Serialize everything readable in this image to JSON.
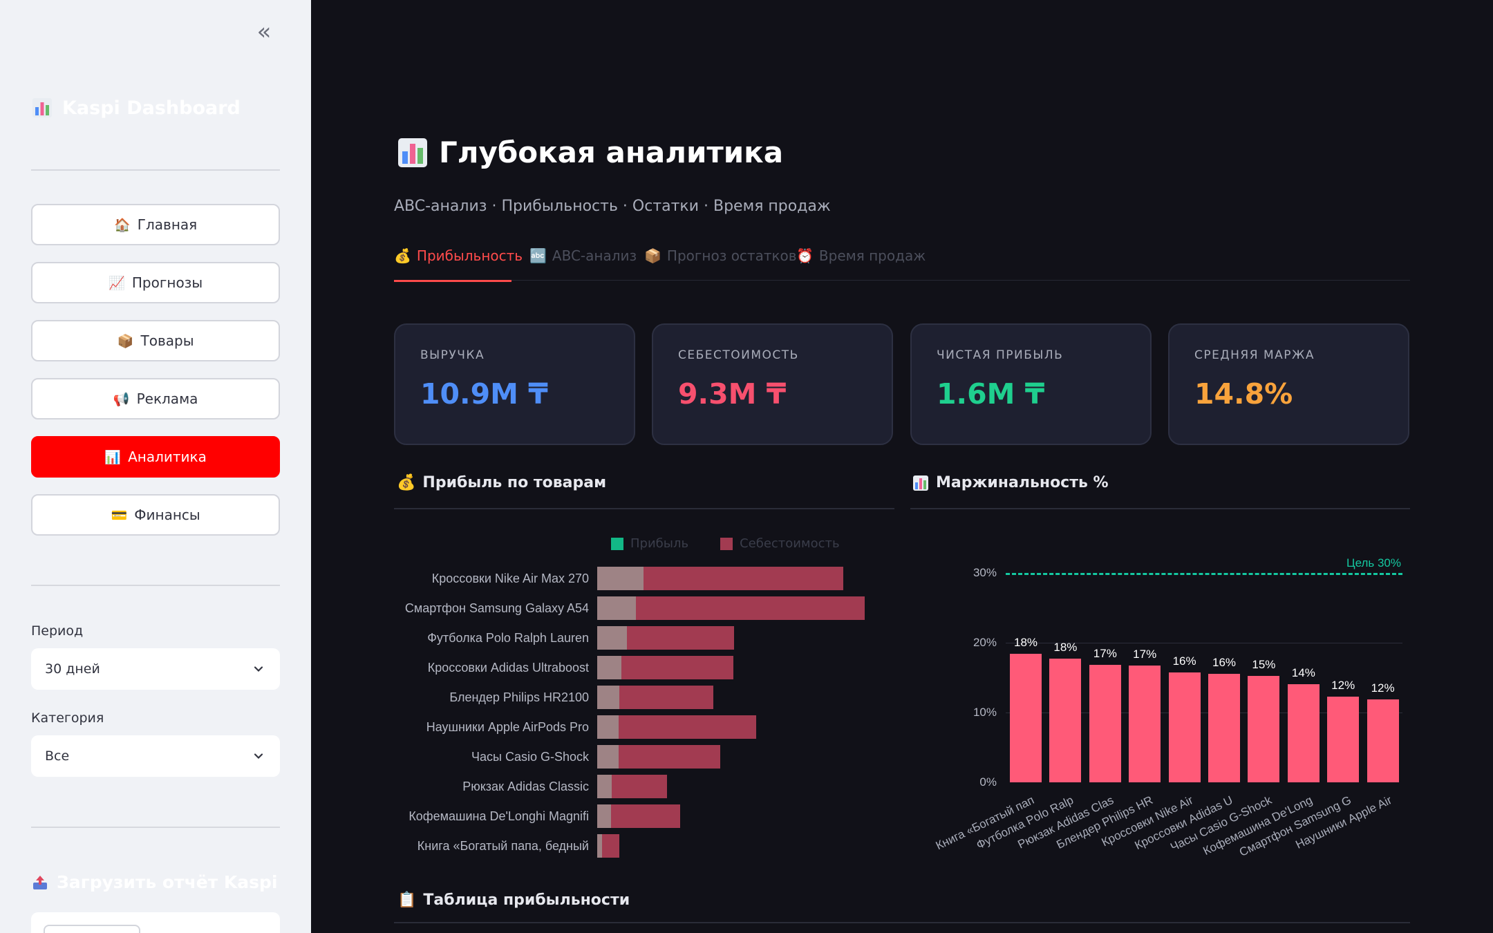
{
  "sidebar": {
    "brand": "Kaspi Dashboard",
    "nav": [
      {
        "emoji": "🏠",
        "label": "Главная",
        "active": false
      },
      {
        "emoji": "📈",
        "label": "Прогнозы",
        "active": false
      },
      {
        "emoji": "📦",
        "label": "Товары",
        "active": false
      },
      {
        "emoji": "📢",
        "label": "Реклама",
        "active": false
      },
      {
        "emoji": "📊",
        "label": "Аналитика",
        "active": true
      },
      {
        "emoji": "💳",
        "label": "Финансы",
        "active": false
      }
    ],
    "period_label": "Период",
    "period_value": "30 дней",
    "category_label": "Категория",
    "category_value": "Все",
    "upload_title": "Загрузить отчёт Kaspi"
  },
  "header": {
    "title": "Глубокая аналитика",
    "subtitle": "ABC-анализ · Прибыльность · Остатки · Время продаж"
  },
  "tabs": [
    {
      "emoji": "💰",
      "label": "Прибыльность",
      "active": true
    },
    {
      "emoji": "🔤",
      "label": "ABC-анализ",
      "active": false
    },
    {
      "emoji": "📦",
      "label": "Прогноз остатков",
      "active": false
    },
    {
      "emoji": "⏰",
      "label": "Время продаж",
      "active": false
    }
  ],
  "kpis": [
    {
      "label": "ВЫРУЧКА",
      "value": "10.9M ₸",
      "color": "#4f8ef7"
    },
    {
      "label": "СЕБЕСТОИМОСТЬ",
      "value": "9.3M ₸",
      "color": "#f7506e"
    },
    {
      "label": "ЧИСТАЯ ПРИБЫЛЬ",
      "value": "1.6M ₸",
      "color": "#1fcf8e"
    },
    {
      "label": "СРЕДНЯЯ МАРЖА",
      "value": "14.8%",
      "color": "#f9a33c"
    }
  ],
  "sections": {
    "profit_by_product": "Прибыль по товарам",
    "margin": "Маржинальность %",
    "profit_table": "Таблица прибыльности"
  },
  "colors": {
    "accent": "#ff4b4b",
    "active_nav": "#ff0000",
    "profit_bar": "#9e8385",
    "cost_bar": "#a23b51",
    "margin_bar": "#ff5a78",
    "target_line": "#14c8a0"
  },
  "chart_data": [
    {
      "type": "bar",
      "orientation": "horizontal",
      "stacked": true,
      "categories": [
        "Кроссовки Nike Air Max 270",
        "Смартфон Samsung Galaxy A54",
        "Футболка Polo Ralph Lauren",
        "Кроссовки Adidas Ultraboost",
        "Блендер Philips HR2100",
        "Наушники Apple AirPods Pro",
        "Часы Casio G-Shock",
        "Рюкзак Adidas Classic",
        "Кофемашина De'Longhi Magnifi",
        "Книга «Богатый папа, бедный"
      ],
      "series": [
        {
          "name": "Прибыль",
          "values": [
            68,
            57,
            44,
            36,
            33,
            32,
            32,
            21,
            20,
            7
          ]
        },
        {
          "name": "Себестоимость",
          "values": [
            295,
            338,
            158,
            165,
            138,
            203,
            150,
            82,
            102,
            26
          ]
        }
      ],
      "legend": "top"
    },
    {
      "type": "bar",
      "categories": [
        "Книга «Богатый пап",
        "Футболка Polo Ralp",
        "Рюкзак Adidas Clas",
        "Блендер Philips HR",
        "Кроссовки Nike Air",
        "Кроссовки Adidas U",
        "Часы Casio G-Shock",
        "Кофемашина De'Long",
        "Смартфон Samsung G",
        "Наушники Apple Air"
      ],
      "values": [
        18.4,
        17.7,
        16.8,
        16.7,
        15.7,
        15.5,
        15.2,
        14.1,
        12.3,
        11.9
      ],
      "value_labels": [
        "18%",
        "18%",
        "17%",
        "17%",
        "16%",
        "16%",
        "15%",
        "14%",
        "12%",
        "12%"
      ],
      "yticks": [
        "0%",
        "10%",
        "20%",
        "30%"
      ],
      "ylim": [
        0,
        32
      ],
      "target": {
        "value": 30,
        "label": "Цель 30%"
      }
    }
  ]
}
